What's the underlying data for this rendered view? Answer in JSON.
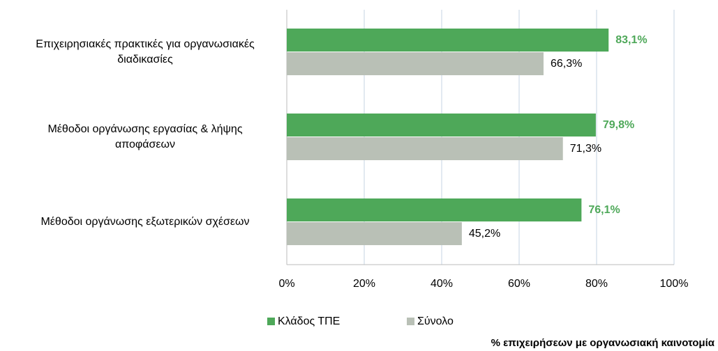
{
  "chart_data": {
    "type": "bar",
    "orientation": "horizontal",
    "categories": [
      "Επιχειρησιακές πρακτικές για οργανωσιακές\nδιαδικασίες",
      "Μέθοδοι οργάνωσης εργασίας & λήψης\nαποφάσεων",
      "Μέθοδοι οργάνωσης εξωτερικών σχέσεων"
    ],
    "series": [
      {
        "name": "Κλάδος ΤΠΕ",
        "color": "#4ea859",
        "values": [
          83.1,
          79.8,
          76.1
        ],
        "value_labels": [
          "83,1%",
          "79,8%",
          "76,1%"
        ]
      },
      {
        "name": "Σύνολο",
        "color": "#b9c0b6",
        "values": [
          66.3,
          71.3,
          45.2
        ],
        "value_labels": [
          "66,3%",
          "71,3%",
          "45,2%"
        ]
      }
    ],
    "xlim": [
      0,
      100
    ],
    "xticks": [
      {
        "value": 0,
        "label": "0%"
      },
      {
        "value": 20,
        "label": "20%"
      },
      {
        "value": 40,
        "label": "40%"
      },
      {
        "value": 60,
        "label": "60%"
      },
      {
        "value": 80,
        "label": "80%"
      },
      {
        "value": 100,
        "label": "100%"
      }
    ],
    "xlabel": "% επιχειρήσεων με οργανωσιακή καινοτομία",
    "grid": true,
    "legend": "bottom"
  }
}
